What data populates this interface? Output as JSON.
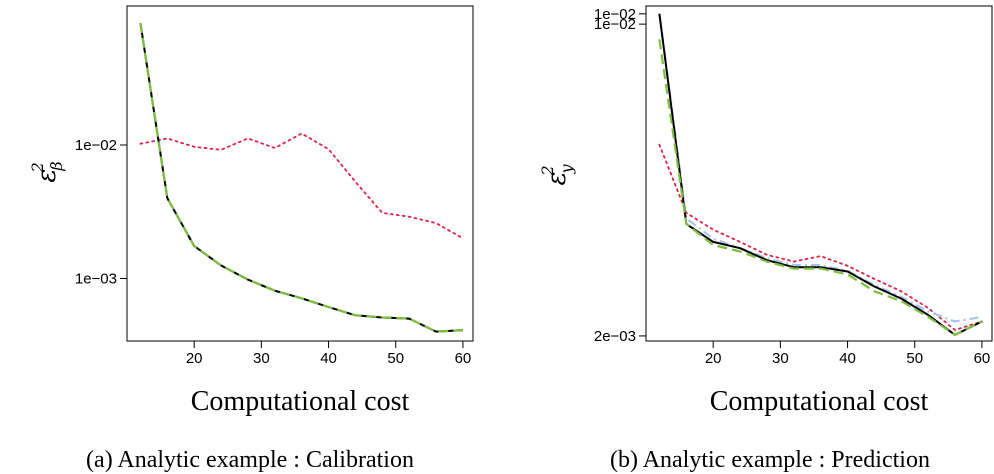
{
  "figure": {
    "panels": [
      {
        "caption": "(a) Analytic example : Calibration",
        "ylabel": {
          "main": "ε",
          "sup": "2",
          "sub": "β"
        }
      },
      {
        "caption": "(b) Analytic example : Prediction",
        "ylabel": {
          "main": "ε",
          "sup": "2",
          "sub": "y"
        }
      }
    ]
  },
  "chart_data": [
    {
      "type": "line",
      "title": "",
      "xlabel": "Computational cost",
      "ylabel": "ε²_β",
      "yscale": "log",
      "xlim": [
        10,
        61.5
      ],
      "ylim": [
        0.00034,
        0.11
      ],
      "xticks": [
        20,
        30,
        40,
        50,
        60
      ],
      "yticks": [
        {
          "value": 0.01,
          "label": "1e−02"
        },
        {
          "value": 0.001,
          "label": "1e−03"
        }
      ],
      "grid": false,
      "legend": "none",
      "x": [
        12,
        16,
        20,
        24,
        28,
        32,
        36,
        40,
        44,
        48,
        52,
        56,
        60
      ],
      "series": [
        {
          "color": "#e0234a",
          "dash": "dotted",
          "values": [
            0.0102,
            0.0112,
            0.0097,
            0.0092,
            0.0112,
            0.0095,
            0.0122,
            0.0093,
            0.0053,
            0.0031,
            0.0029,
            0.0026,
            0.002
          ]
        },
        {
          "color": "#a9c4e4",
          "dash": "dashdot",
          "values": [
            0.082,
            0.004,
            0.00175,
            0.00125,
            0.00098,
            0.00081,
            0.00071,
            0.00061,
            0.00053,
            0.00051,
            0.0005,
            0.0004,
            0.00041
          ]
        },
        {
          "color": "#000000",
          "dash": "solid",
          "values": [
            0.082,
            0.004,
            0.00175,
            0.00125,
            0.00098,
            0.00081,
            0.00071,
            0.00061,
            0.00053,
            0.00051,
            0.0005,
            0.0004,
            0.00041
          ]
        },
        {
          "color": "#7fbf3f",
          "dash": "dashed",
          "values": [
            0.082,
            0.004,
            0.00175,
            0.00125,
            0.00098,
            0.00081,
            0.00071,
            0.00061,
            0.00053,
            0.00051,
            0.0005,
            0.0004,
            0.00041
          ]
        }
      ]
    },
    {
      "type": "line",
      "title": "",
      "xlabel": "Computational cost",
      "ylabel": "ε²_y",
      "yscale": "log",
      "xlim": [
        10,
        61.5
      ],
      "ylim": [
        0.00195,
        0.0104
      ],
      "xticks": [
        20,
        30,
        40,
        50,
        60
      ],
      "yticks": [
        {
          "value": 0.01,
          "label": "1e−02"
        },
        {
          "value": 0.0095,
          "label": "1e−02"
        },
        {
          "value": 0.002,
          "label": "2e−03"
        }
      ],
      "grid": false,
      "legend": "none",
      "x": [
        12,
        16,
        20,
        24,
        28,
        32,
        36,
        40,
        44,
        48,
        52,
        56,
        60
      ],
      "series": [
        {
          "color": "#e0234a",
          "dash": "dotted",
          "values": [
            0.0052,
            0.0037,
            0.0034,
            0.0032,
            0.003,
            0.0029,
            0.00298,
            0.00284,
            0.00266,
            0.0025,
            0.0023,
            0.00206,
            0.00215
          ]
        },
        {
          "color": "#a9c4e4",
          "dash": "dashdot",
          "values": [
            0.01,
            0.0036,
            0.00325,
            0.0031,
            0.00295,
            0.00285,
            0.00285,
            0.00277,
            0.00258,
            0.00243,
            0.00226,
            0.00215,
            0.0022
          ]
        },
        {
          "color": "#000000",
          "dash": "solid",
          "values": [
            0.01,
            0.0035,
            0.0032,
            0.0031,
            0.00292,
            0.00282,
            0.00282,
            0.00276,
            0.00256,
            0.00241,
            0.00222,
            0.00201,
            0.00215
          ]
        },
        {
          "color": "#7fbf3f",
          "dash": "dashed",
          "values": [
            0.0088,
            0.0035,
            0.00315,
            0.00305,
            0.0029,
            0.0028,
            0.0028,
            0.00272,
            0.0025,
            0.00238,
            0.0022,
            0.00201,
            0.00215
          ]
        }
      ]
    }
  ]
}
